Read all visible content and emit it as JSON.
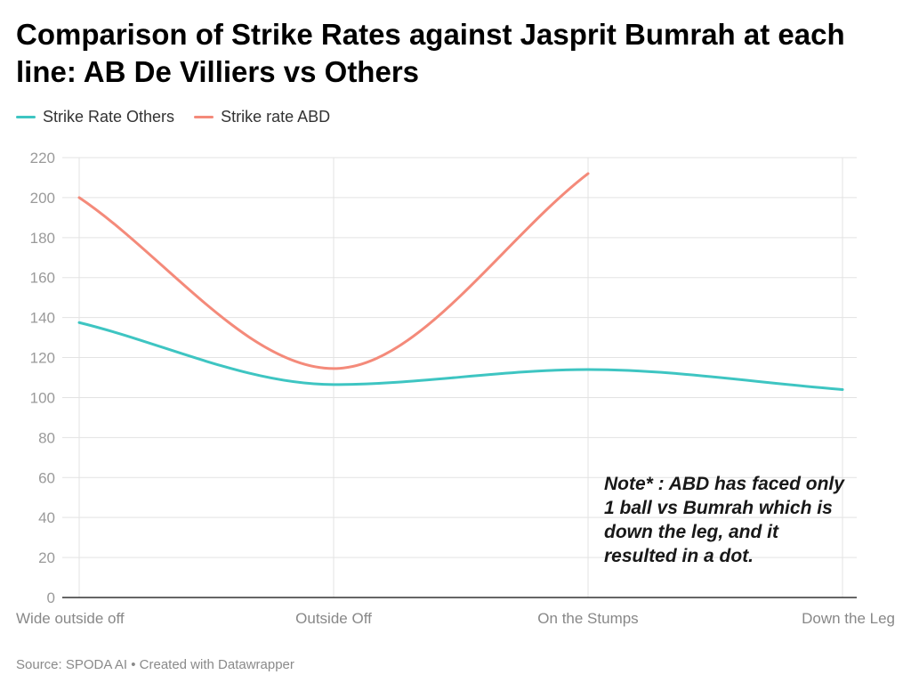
{
  "chart_data": {
    "type": "line",
    "title": "Comparison of Strike Rates against Jasprit Bumrah at each line: AB De Villiers vs Others",
    "categories": [
      "Wide outside off",
      "Outside Off",
      "On the Stumps",
      "Down the Leg"
    ],
    "series": [
      {
        "name": "Strike Rate Others",
        "color": "#3ec5c2",
        "values": [
          137.5,
          106.5,
          114,
          104
        ]
      },
      {
        "name": "Strike rate ABD",
        "color": "#f48a7a",
        "values": [
          200,
          114.5,
          212,
          null
        ]
      }
    ],
    "ylim": [
      0,
      220
    ],
    "yticks": [
      0,
      20,
      40,
      60,
      80,
      100,
      120,
      140,
      160,
      180,
      200,
      220
    ],
    "grid": true,
    "legend": "top-left",
    "xlabel": "",
    "ylabel": "",
    "annotation": "Note* : ABD has faced only 1 ball vs Bumrah which is down the leg, and it resulted in a dot."
  },
  "footer": {
    "source": "Source: SPODA AI • Created with Datawrapper"
  }
}
